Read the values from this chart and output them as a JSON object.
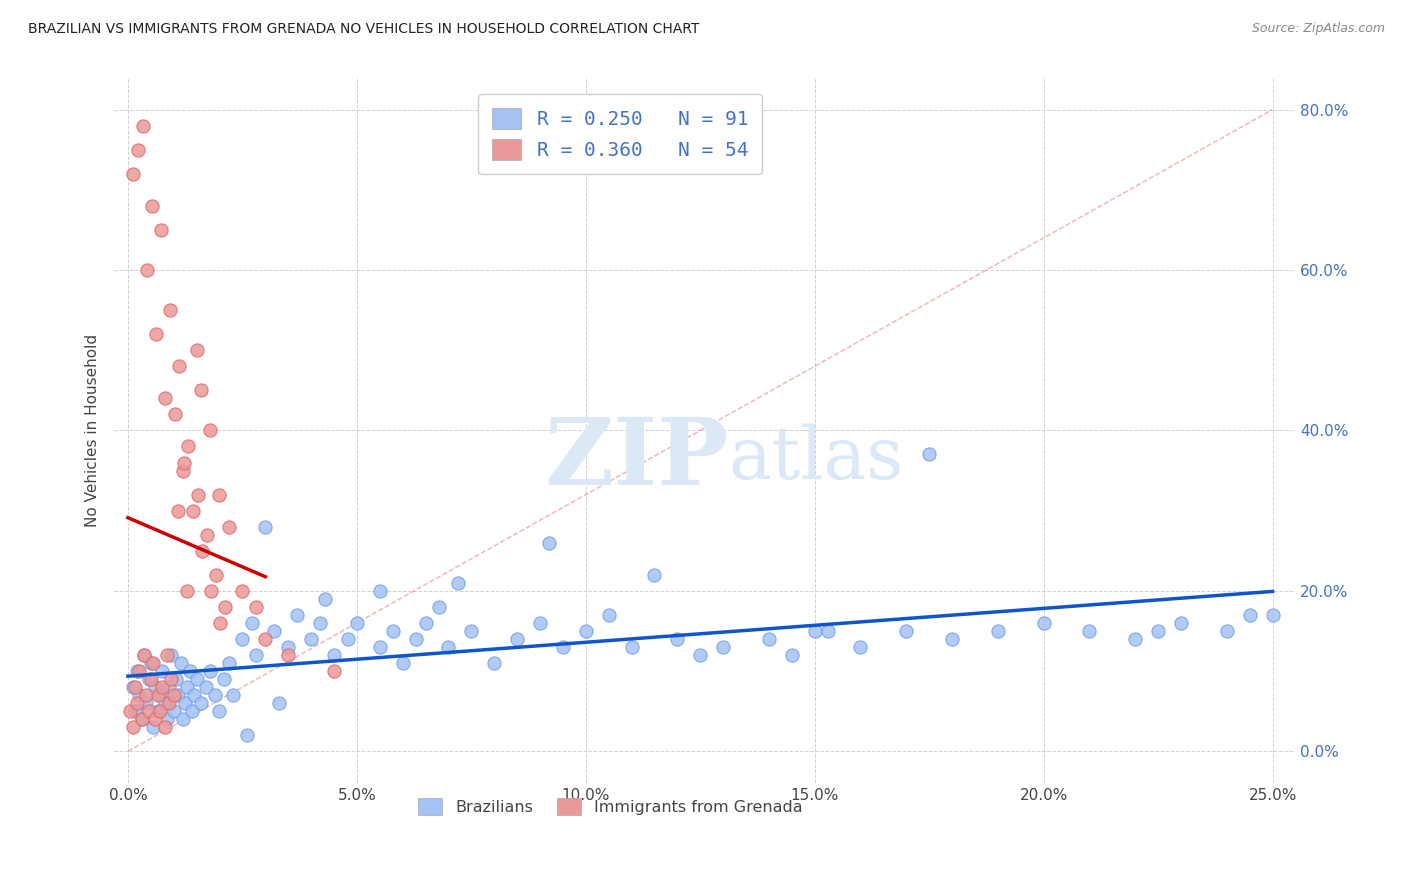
{
  "title": "BRAZILIAN VS IMMIGRANTS FROM GRENADA NO VEHICLES IN HOUSEHOLD CORRELATION CHART",
  "source": "Source: ZipAtlas.com",
  "ylabel": "No Vehicles in Household",
  "legend_R_blue": "0.250",
  "legend_N_blue": "91",
  "legend_R_pink": "0.360",
  "legend_N_pink": "54",
  "blue_color": "#a4c2f4",
  "blue_edge_color": "#6d9eeb",
  "pink_color": "#ea9999",
  "pink_edge_color": "#e06666",
  "trend_blue_color": "#1155cc",
  "trend_pink_color": "#cc0000",
  "diagonal_color": "#e06666",
  "watermark_zip": "ZIP",
  "watermark_atlas": "atlas",
  "xlim_min": -0.3,
  "xlim_max": 25.5,
  "ylim_min": -4.0,
  "ylim_max": 84.0,
  "xticks": [
    0,
    5,
    10,
    15,
    20,
    25
  ],
  "yticks": [
    0,
    20,
    40,
    60,
    80
  ],
  "blue_x": [
    0.1,
    0.15,
    0.2,
    0.25,
    0.3,
    0.35,
    0.4,
    0.45,
    0.5,
    0.55,
    0.6,
    0.65,
    0.7,
    0.75,
    0.8,
    0.85,
    0.9,
    0.95,
    1.0,
    1.05,
    1.1,
    1.15,
    1.2,
    1.25,
    1.3,
    1.35,
    1.4,
    1.45,
    1.5,
    1.6,
    1.7,
    1.8,
    1.9,
    2.0,
    2.1,
    2.2,
    2.3,
    2.5,
    2.7,
    2.8,
    3.0,
    3.2,
    3.5,
    3.7,
    4.0,
    4.2,
    4.5,
    4.8,
    5.0,
    5.5,
    5.8,
    6.0,
    6.3,
    6.5,
    7.0,
    7.5,
    8.0,
    8.5,
    9.0,
    9.5,
    10.0,
    10.5,
    11.0,
    12.0,
    12.5,
    13.0,
    14.0,
    14.5,
    15.0,
    16.0,
    17.0,
    18.0,
    19.0,
    20.0,
    21.0,
    22.0,
    22.5,
    23.0,
    24.0,
    24.5,
    25.0,
    11.5,
    7.2,
    4.3,
    5.5,
    6.8,
    3.3,
    2.6,
    9.2,
    17.5,
    15.3
  ],
  "blue_y": [
    8.0,
    5.0,
    10.0,
    7.0,
    4.0,
    12.0,
    6.0,
    9.0,
    11.0,
    3.0,
    8.0,
    5.0,
    7.0,
    10.0,
    6.0,
    4.0,
    8.0,
    12.0,
    5.0,
    9.0,
    7.0,
    11.0,
    4.0,
    6.0,
    8.0,
    10.0,
    5.0,
    7.0,
    9.0,
    6.0,
    8.0,
    10.0,
    7.0,
    5.0,
    9.0,
    11.0,
    7.0,
    14.0,
    16.0,
    12.0,
    28.0,
    15.0,
    13.0,
    17.0,
    14.0,
    16.0,
    12.0,
    14.0,
    16.0,
    13.0,
    15.0,
    11.0,
    14.0,
    16.0,
    13.0,
    15.0,
    11.0,
    14.0,
    16.0,
    13.0,
    15.0,
    17.0,
    13.0,
    14.0,
    12.0,
    13.0,
    14.0,
    12.0,
    15.0,
    13.0,
    15.0,
    14.0,
    15.0,
    16.0,
    15.0,
    14.0,
    15.0,
    16.0,
    15.0,
    17.0,
    17.0,
    22.0,
    21.0,
    19.0,
    20.0,
    18.0,
    6.0,
    2.0,
    26.0,
    37.0,
    15.0
  ],
  "pink_x": [
    0.05,
    0.1,
    0.15,
    0.2,
    0.25,
    0.3,
    0.35,
    0.4,
    0.45,
    0.5,
    0.55,
    0.6,
    0.65,
    0.7,
    0.75,
    0.8,
    0.85,
    0.9,
    0.95,
    1.0,
    1.1,
    1.2,
    1.3,
    1.5,
    1.6,
    1.8,
    2.0,
    2.2,
    2.5,
    2.8,
    0.12,
    0.22,
    0.32,
    0.52,
    0.72,
    0.92,
    1.12,
    1.32,
    1.52,
    1.72,
    1.92,
    2.12,
    3.0,
    3.5,
    0.42,
    0.62,
    0.82,
    1.02,
    1.22,
    1.42,
    1.62,
    1.82,
    2.02,
    4.5
  ],
  "pink_y": [
    5.0,
    3.0,
    8.0,
    6.0,
    10.0,
    4.0,
    12.0,
    7.0,
    5.0,
    9.0,
    11.0,
    4.0,
    7.0,
    5.0,
    8.0,
    3.0,
    12.0,
    6.0,
    9.0,
    7.0,
    30.0,
    35.0,
    20.0,
    50.0,
    45.0,
    40.0,
    32.0,
    28.0,
    20.0,
    18.0,
    72.0,
    75.0,
    78.0,
    68.0,
    65.0,
    55.0,
    48.0,
    38.0,
    32.0,
    27.0,
    22.0,
    18.0,
    14.0,
    12.0,
    60.0,
    52.0,
    44.0,
    42.0,
    36.0,
    30.0,
    25.0,
    20.0,
    16.0,
    10.0
  ]
}
